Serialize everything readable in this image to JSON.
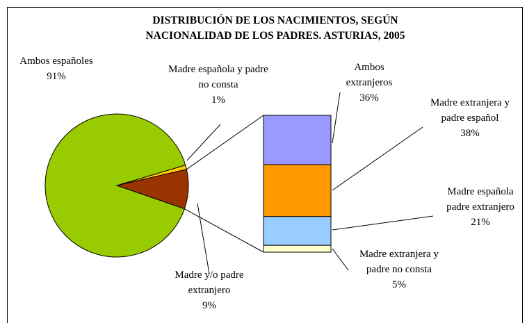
{
  "chart_data": {
    "type": "pie",
    "title": "DISTRIBUCIÓN DE LOS NACIMIENTOS, SEGÚN NACIONALIDAD DE LOS PADRES.  ASTURIAS, 2005",
    "categories": [
      "Ambos españoles",
      "Madre española y padre no consta",
      "Madre y/o padre extranjero"
    ],
    "values": [
      91,
      1,
      9
    ],
    "value_labels": [
      "91%",
      "1%",
      "9%"
    ],
    "colors": [
      "#99cc00",
      "#ffcc00",
      "#993300"
    ],
    "bar": {
      "categories": [
        "Ambos extranjeros",
        "Madre extranjera y padre español",
        "Madre española padre extranjero",
        "Madre extranjera y padre no consta"
      ],
      "values": [
        36,
        38,
        21,
        5
      ],
      "value_labels": [
        "36%",
        "38%",
        "21%",
        "5%"
      ],
      "colors": [
        "#9999ff",
        "#ff9900",
        "#99ccff",
        "#ffffcc"
      ]
    }
  }
}
